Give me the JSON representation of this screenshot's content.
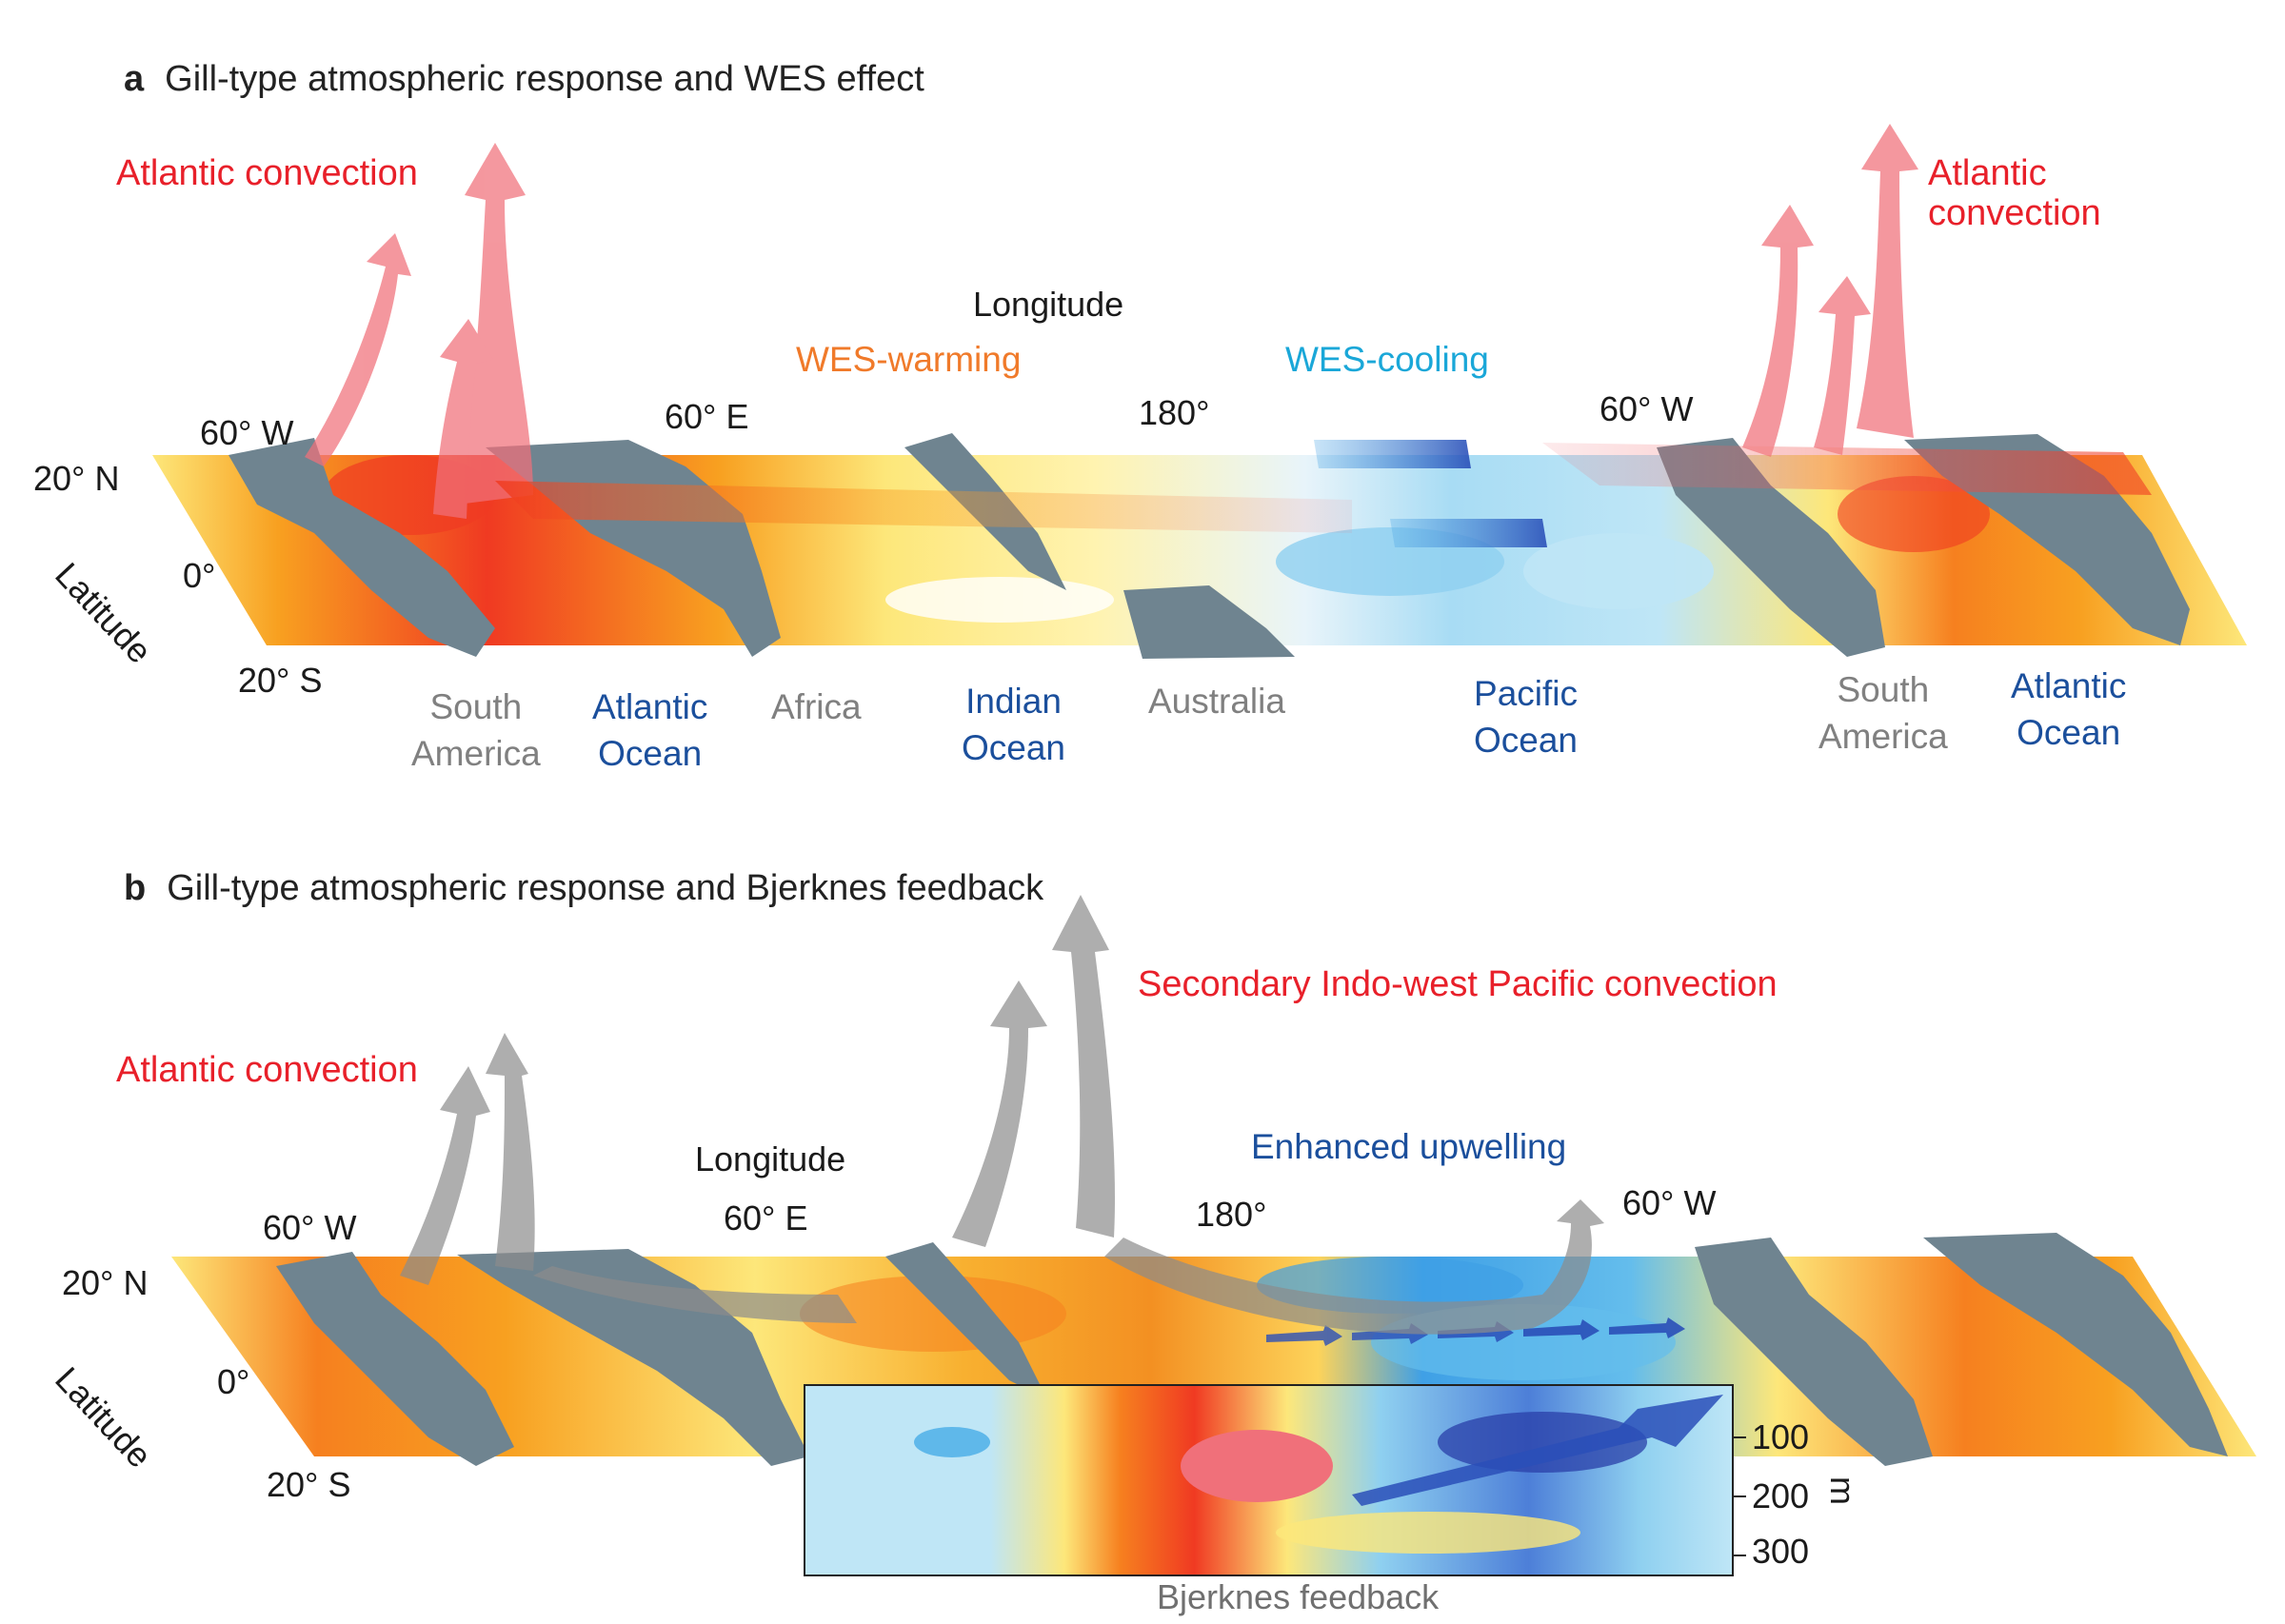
{
  "panel_a": {
    "letter": "a",
    "title": "Gill-type atmospheric response and WES effect",
    "axis_longitude": "Longitude",
    "axis_latitude": "Latitude",
    "lon_ticks": [
      "60° W",
      "60° E",
      "180°",
      "60° W"
    ],
    "lat_ticks": [
      "20° N",
      "0°",
      "20° S"
    ],
    "convection_left": "Atlantic convection",
    "convection_right_line1": "Atlantic",
    "convection_right_line2": "convection",
    "wes_warming": "WES-warming",
    "wes_cooling": "WES-cooling",
    "regions": {
      "south_america_1": [
        "South",
        "America"
      ],
      "atlantic_ocean_1": [
        "Atlantic",
        "Ocean"
      ],
      "africa": "Africa",
      "indian_ocean": [
        "Indian",
        "Ocean"
      ],
      "australia": "Australia",
      "pacific_ocean": [
        "Pacific",
        "Ocean"
      ],
      "south_america_2": [
        "South",
        "America"
      ],
      "atlantic_ocean_2": [
        "Atlantic",
        "Ocean"
      ]
    }
  },
  "panel_b": {
    "letter": "b",
    "title": "Gill-type atmospheric response and Bjerknes feedback",
    "axis_longitude": "Longitude",
    "axis_latitude": "Latitude",
    "lon_ticks": [
      "60° W",
      "60° E",
      "180°",
      "60° W"
    ],
    "lat_ticks": [
      "20° N",
      "0°",
      "20° S"
    ],
    "convection_atlantic": "Atlantic convection",
    "convection_secondary": "Secondary Indo-west Pacific convection",
    "upwelling": "Enhanced upwelling",
    "section_caption": "Bjerknes feedback",
    "depth_ticks": [
      "100",
      "200",
      "300"
    ],
    "depth_unit": "m"
  },
  "colors": {
    "warm_core": "#f03a22",
    "warm_mid": "#f8a020",
    "warm_light": "#fde77a",
    "cool_light": "#bfe6f6",
    "cool_mid": "#5fb8ea",
    "cool_deep": "#2a4fb8",
    "land": "#6f8490",
    "arrow_red": "#f0707a",
    "arrow_gray": "#8c8c8c"
  }
}
